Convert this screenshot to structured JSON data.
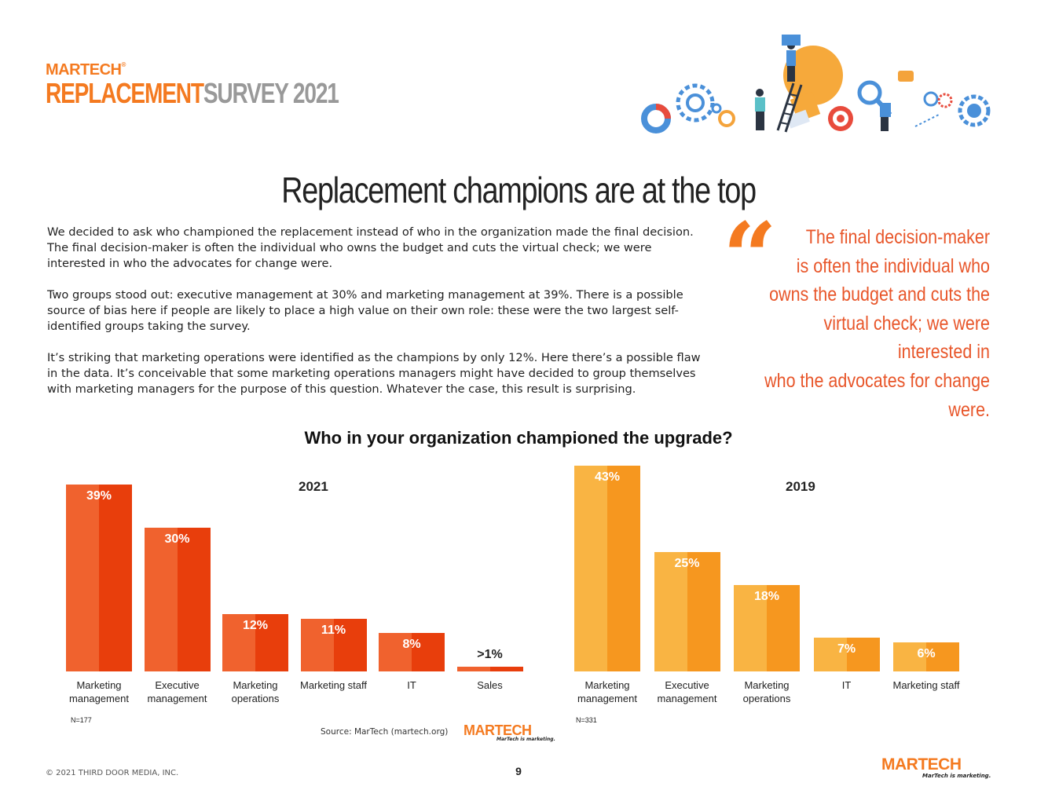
{
  "header": {
    "brand_small": "MARTECH",
    "brand_big_orange": "REPLACEMENT",
    "brand_big_gray": "SURVEY 2021"
  },
  "title": "Replacement champions are at the top",
  "body_paragraphs": [
    "We decided to ask who championed the replacement instead of who in the organization made the final decision. The final decision-maker is often the individual who owns the budget and cuts the virtual check; we were interested in who the advocates for change were.",
    "Two groups stood out: executive management at 30% and marketing management at 39%. There is a possible source of bias here if people are likely to place a high value on their own role: these were the two largest self-identified groups taking the survey.",
    "It’s striking that marketing operations were identified as the champions by only 12%. Here there’s a possible flaw in the data. It’s conceivable that some marketing operations managers might have decided to group themselves with marketing managers for the purpose of this question. Whatever the case, this result is surprising."
  ],
  "pull_quote": {
    "mark": "“",
    "text": "The final decision-maker\nis often the individual who\nowns the budget and cuts the\nvirtual check; we were interested in\nwho the advocates for change were."
  },
  "chart_data": [
    {
      "type": "bar",
      "title": "2021",
      "categories": [
        "Marketing\nmanagement",
        "Executive\nmanagement",
        "Marketing\noperations",
        "Marketing staff",
        "IT",
        "Sales"
      ],
      "values": [
        39,
        30,
        12,
        11,
        8,
        1
      ],
      "value_labels": [
        "39%",
        "30%",
        "12%",
        "11%",
        "8%",
        ">1%"
      ],
      "n_label": "N=177",
      "ylim": [
        0,
        43
      ],
      "colors": [
        "#f0622e",
        "#e83e0c"
      ]
    },
    {
      "type": "bar",
      "title": "2019",
      "categories": [
        "Marketing\nmanagement",
        "Executive\nmanagement",
        "Marketing\noperations",
        "IT",
        "Marketing staff"
      ],
      "values": [
        43,
        25,
        18,
        7,
        6
      ],
      "value_labels": [
        "43%",
        "25%",
        "18%",
        "7%",
        "6%"
      ],
      "n_label": "N=331",
      "ylim": [
        0,
        43
      ],
      "colors": [
        "#f9b443",
        "#f6971f"
      ]
    }
  ],
  "chart_title": "Who in your organization championed the upgrade?",
  "source": "Source: MarTech (martech.org)",
  "logo_mid": "MARTECH",
  "tagline": "MarTech is marketing.",
  "footer": {
    "copyright": "© 2021 THIRD DOOR MEDIA, INC.",
    "page_number": "9",
    "logo": "MARTECH",
    "tagline": "MarTech is marketing."
  },
  "icons": [
    "people-ladder-lightbulb-illustration"
  ]
}
